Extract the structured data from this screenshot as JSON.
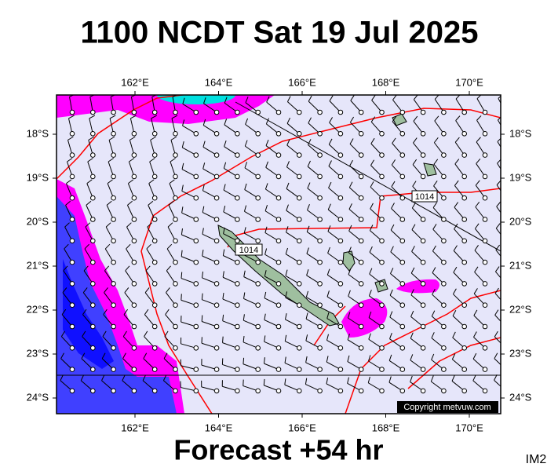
{
  "header": {
    "title": "1100 NCDT Sat 19 Jul 2025"
  },
  "map": {
    "lon_labels": [
      "162°E",
      "164°E",
      "166°E",
      "168°E",
      "170°E"
    ],
    "lat_labels": [
      "18°S",
      "19°S",
      "20°S",
      "21°S",
      "22°S",
      "23°S",
      "24°S"
    ],
    "isobar_labels": [
      "1014",
      "1014"
    ],
    "copyright": "Copyright metvuw.com"
  },
  "footer": {
    "forecast": "Forecast +54 hr",
    "image_id": "IM2"
  }
}
